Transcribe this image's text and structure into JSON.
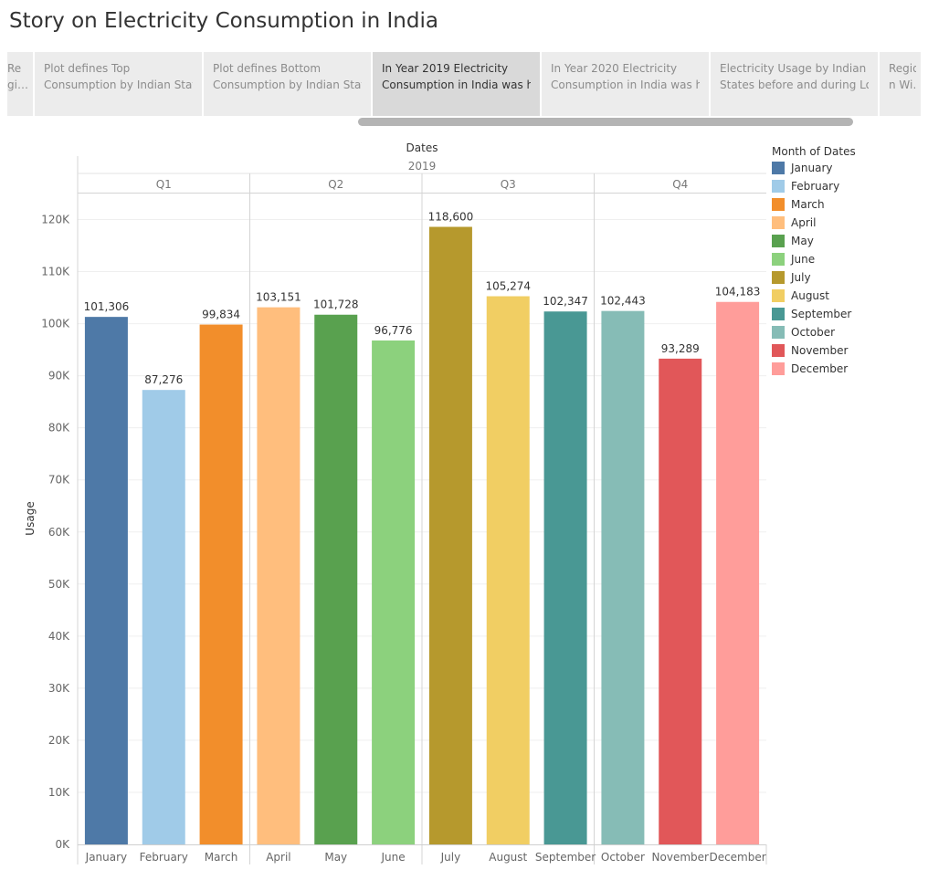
{
  "story": {
    "title": "Story on Electricity Consumption in India",
    "points": [
      {
        "lines": [
          "Re",
          "gi…"
        ]
      },
      {
        "lines": [
          "Plot defines Top",
          "Consumption by Indian Stat…"
        ]
      },
      {
        "lines": [
          "Plot defines Bottom",
          "Consumption by Indian Stat…"
        ]
      },
      {
        "lines": [
          "In Year 2019 Electricity",
          "Consumption in India was h…"
        ],
        "active": true
      },
      {
        "lines": [
          "In Year 2020 Electricity",
          "Consumption in India was h…"
        ]
      },
      {
        "lines": [
          "Electricity Usage by Indian",
          "States before and during Lo…"
        ]
      },
      {
        "lines": [
          "Regio",
          "n Wi…"
        ]
      }
    ]
  },
  "legend": {
    "title": "Month of Dates"
  },
  "chart_data": {
    "type": "bar",
    "title": "",
    "column_header": "Dates",
    "year": "2019",
    "quarters": [
      "Q1",
      "Q2",
      "Q3",
      "Q4"
    ],
    "ylabel": "Usage",
    "ylim": [
      0,
      125000
    ],
    "yticks": [
      0,
      10000,
      20000,
      30000,
      40000,
      50000,
      60000,
      70000,
      80000,
      90000,
      100000,
      110000,
      120000
    ],
    "ytick_labels": [
      "0K",
      "10K",
      "20K",
      "30K",
      "40K",
      "50K",
      "60K",
      "70K",
      "80K",
      "90K",
      "100K",
      "110K",
      "120K"
    ],
    "grid": true,
    "legend_position": "right",
    "categories": [
      "January",
      "February",
      "March",
      "April",
      "May",
      "June",
      "July",
      "August",
      "September",
      "October",
      "November",
      "December"
    ],
    "values": [
      101306,
      87276,
      99834,
      103151,
      101728,
      96776,
      118600,
      105274,
      102347,
      102443,
      93289,
      104183
    ],
    "value_labels": [
      "101,306",
      "87,276",
      "99,834",
      "103,151",
      "101,728",
      "96,776",
      "118,600",
      "105,274",
      "102,347",
      "102,443",
      "93,289",
      "104,183"
    ],
    "colors": [
      "#4e79a7",
      "#a0cbe8",
      "#f28e2b",
      "#ffbe7d",
      "#59a14f",
      "#8cd17d",
      "#b6992d",
      "#f1ce63",
      "#499894",
      "#86bcb6",
      "#e15759",
      "#ff9d9a"
    ]
  }
}
